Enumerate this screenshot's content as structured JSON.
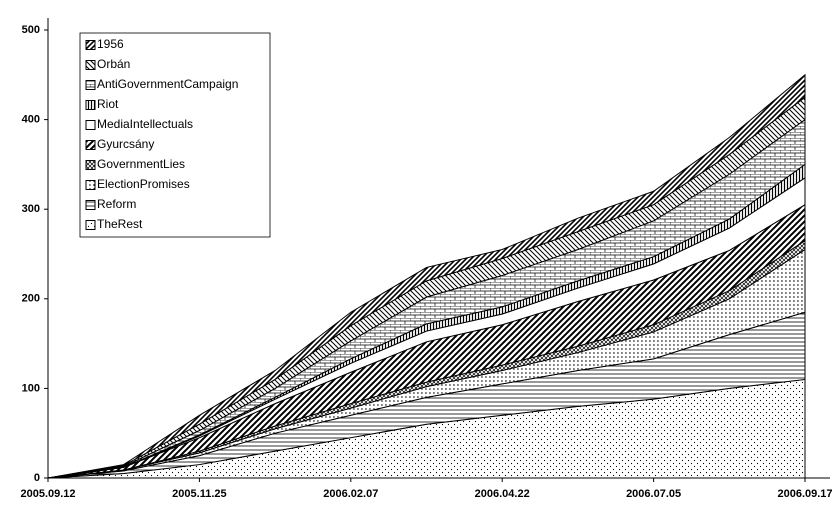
{
  "chart_data": {
    "type": "stacked_area",
    "x": [
      "2005.09.12",
      "2005.10.19",
      "2005.11.25",
      "2006.01.01",
      "2006.02.07",
      "2006.03.16",
      "2006.04.22",
      "2006.05.29",
      "2006.07.05",
      "2006.08.11",
      "2006.09.17"
    ],
    "xticks": [
      "2005.09.12",
      "2005.11.25",
      "2006.02.07",
      "2006.04.22",
      "2006.07.05",
      "2006.09.17"
    ],
    "ylim": [
      0,
      500
    ],
    "yticks": [
      0,
      100,
      200,
      300,
      400,
      500
    ],
    "grid": false,
    "legend": "upper left",
    "series": [
      {
        "name": "TheRest",
        "pattern": "dots",
        "color": "#000000",
        "values": [
          0,
          5,
          15,
          30,
          45,
          60,
          70,
          80,
          88,
          100,
          110
        ]
      },
      {
        "name": "Reform",
        "pattern": "hlines",
        "color": "#000000",
        "values": [
          0,
          3,
          10,
          20,
          25,
          30,
          35,
          40,
          45,
          60,
          75
        ]
      },
      {
        "name": "ElectionPromises",
        "pattern": "vdots",
        "color": "#000000",
        "values": [
          0,
          1,
          3,
          5,
          8,
          12,
          15,
          20,
          30,
          40,
          70
        ]
      },
      {
        "name": "GovernmentLies",
        "pattern": "cross",
        "color": "#000000",
        "values": [
          0,
          0,
          2,
          3,
          5,
          5,
          6,
          7,
          8,
          9,
          10
        ]
      },
      {
        "name": "Gyurcsány",
        "pattern": "thickdiag",
        "color": "#000000",
        "values": [
          0,
          3,
          15,
          25,
          35,
          45,
          45,
          50,
          50,
          45,
          40
        ]
      },
      {
        "name": "MediaIntellectuals",
        "pattern": "blank",
        "color": "#000000",
        "values": [
          0,
          0,
          2,
          5,
          10,
          12,
          12,
          15,
          18,
          25,
          30
        ]
      },
      {
        "name": "Riot",
        "pattern": "vlines",
        "color": "#000000",
        "values": [
          0,
          0,
          1,
          2,
          5,
          8,
          8,
          8,
          8,
          10,
          15
        ]
      },
      {
        "name": "AntiGovernmentCampaign",
        "pattern": "brick",
        "color": "#000000",
        "values": [
          0,
          1,
          5,
          10,
          20,
          30,
          35,
          35,
          40,
          50,
          50
        ]
      },
      {
        "name": "Orbán",
        "pattern": "diag",
        "color": "#000000",
        "values": [
          0,
          1,
          7,
          10,
          17,
          18,
          19,
          20,
          18,
          22,
          25
        ]
      },
      {
        "name": "1956",
        "pattern": "backdiag",
        "color": "#000000",
        "values": [
          0,
          1,
          10,
          10,
          15,
          15,
          10,
          15,
          15,
          19,
          25
        ]
      }
    ]
  }
}
